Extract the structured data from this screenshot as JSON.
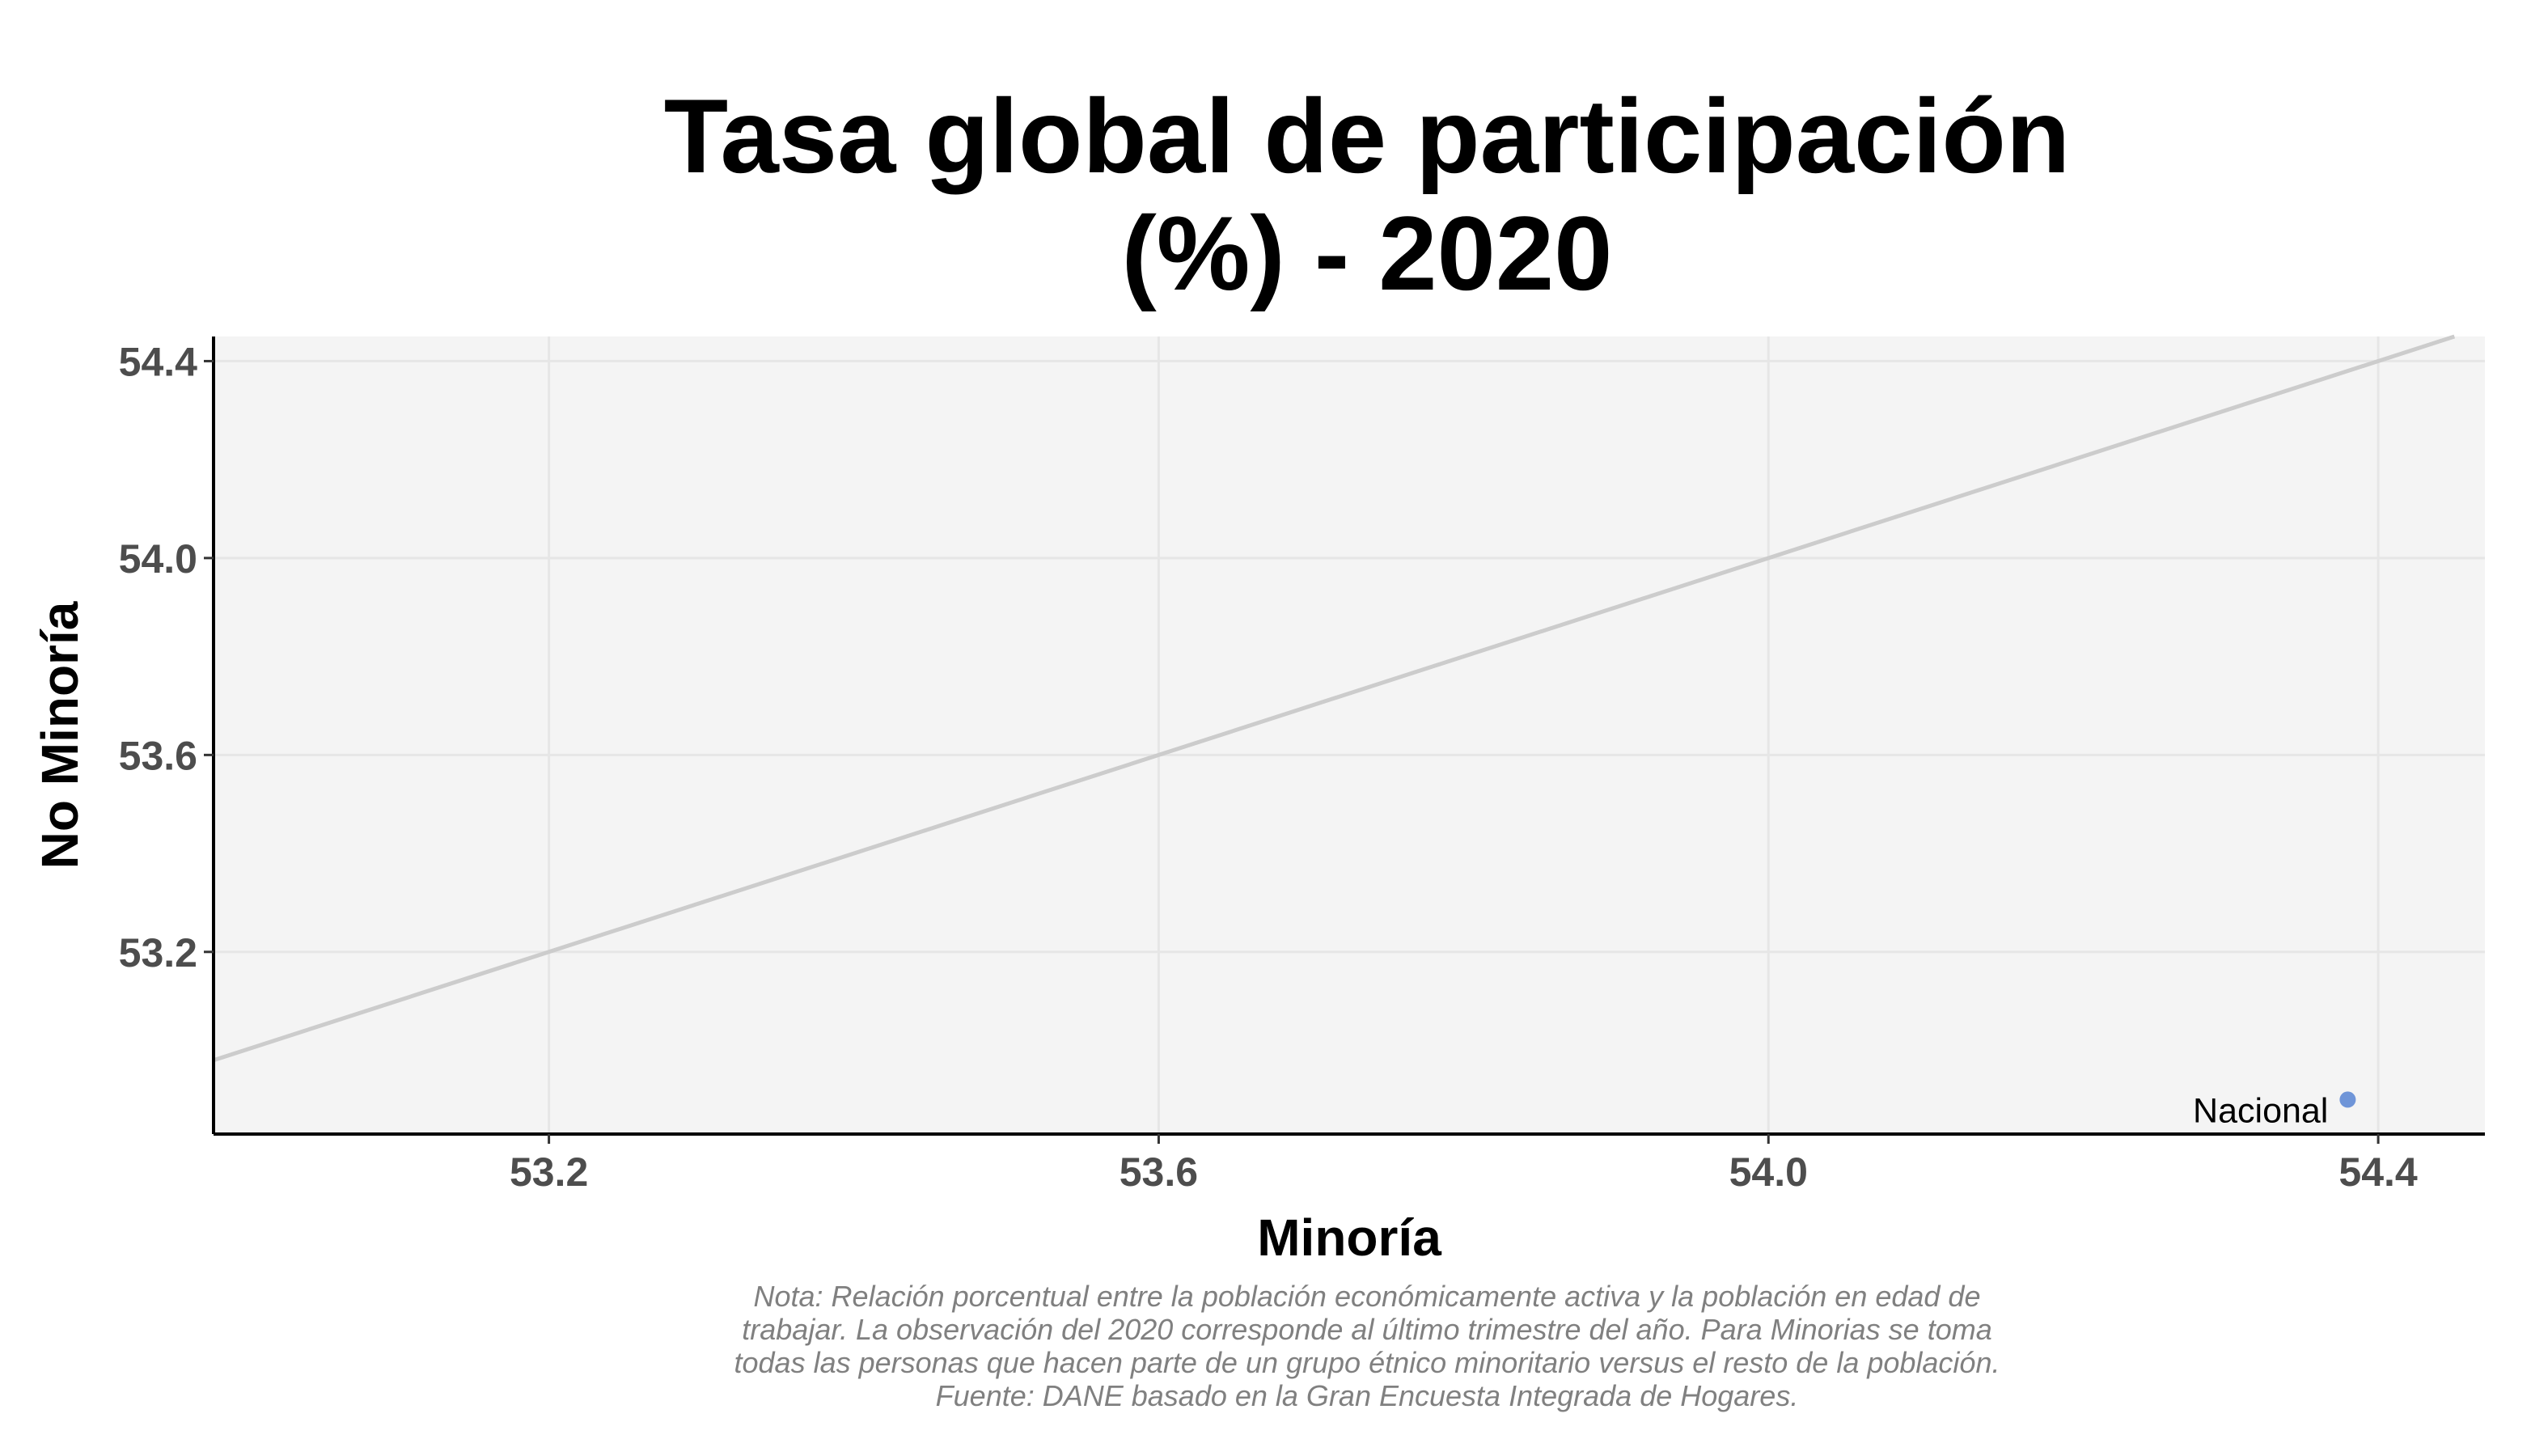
{
  "chart_data": {
    "type": "scatter",
    "title_lines": [
      "Tasa global de participación",
      "(%) - 2020"
    ],
    "xlabel": "Minoría",
    "ylabel": "No Minoría",
    "xlim": [
      52.98,
      54.47
    ],
    "ylim": [
      52.83,
      54.45
    ],
    "x_ticks": [
      "53.2",
      "53.6",
      "54.0",
      "54.4"
    ],
    "y_ticks": [
      "53.2",
      "53.6",
      "54.0",
      "54.4"
    ],
    "grid": true,
    "reference_line": "y = x",
    "points": [
      {
        "label": "Nacional",
        "x": 54.38,
        "y": 52.9
      }
    ],
    "caption_lines": [
      "Nota: Relación porcentual entre la población económicamente activa y la población en edad de",
      "trabajar. La observación del 2020 corresponde al último trimestre del año. Para Minorias se toma",
      "todas las personas que hacen parte de un grupo étnico minoritario versus el resto de la población.",
      "Fuente: DANE basado en la Gran Encuesta Integrada de Hogares."
    ],
    "colors": {
      "panel": "#f4f4f4",
      "grid": "#e6e6e6",
      "reference_line": "#cccccc",
      "point": "#6f95d8",
      "axis": "#000000"
    }
  }
}
